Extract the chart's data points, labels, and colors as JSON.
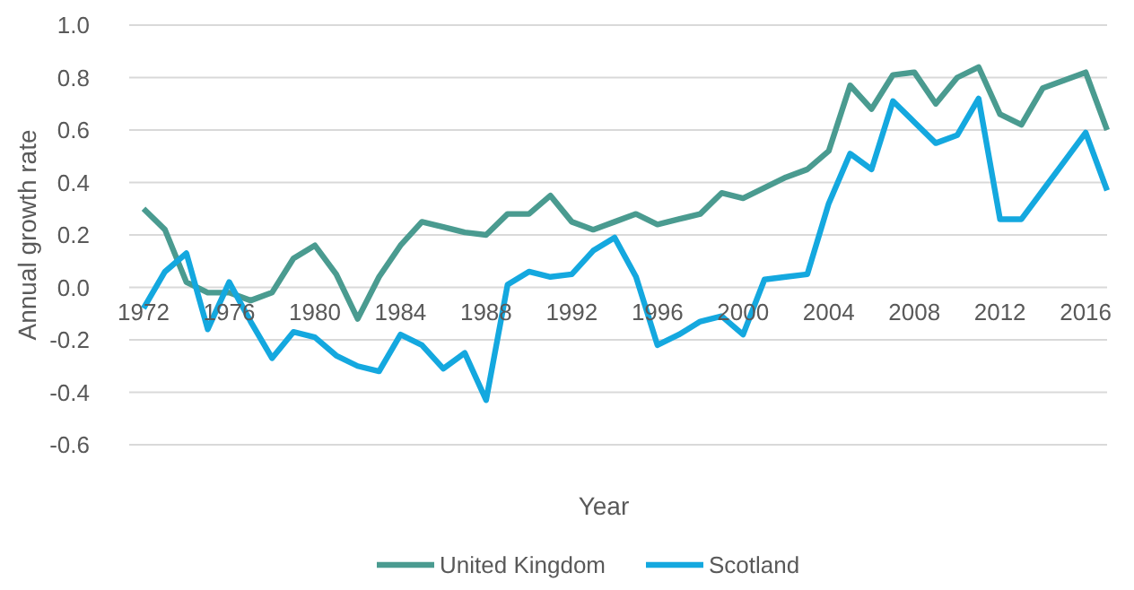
{
  "chart_data": {
    "type": "line",
    "xlabel": "Year",
    "ylabel": "Annual growth rate",
    "x": [
      1972,
      1973,
      1974,
      1975,
      1976,
      1977,
      1978,
      1979,
      1980,
      1981,
      1982,
      1983,
      1984,
      1985,
      1986,
      1987,
      1988,
      1989,
      1990,
      1991,
      1992,
      1993,
      1994,
      1995,
      1996,
      1997,
      1998,
      1999,
      2000,
      2001,
      2002,
      2003,
      2004,
      2005,
      2006,
      2007,
      2008,
      2009,
      2010,
      2011,
      2012,
      2013,
      2014,
      2015,
      2016,
      2017
    ],
    "series": [
      {
        "name": "United Kingdom",
        "color": "#4a9b90",
        "values": [
          0.3,
          0.22,
          0.02,
          -0.02,
          -0.02,
          -0.05,
          -0.02,
          0.11,
          0.16,
          0.05,
          -0.12,
          0.04,
          0.16,
          0.25,
          0.23,
          0.21,
          0.2,
          0.28,
          0.28,
          0.35,
          0.25,
          0.22,
          0.25,
          0.28,
          0.24,
          0.26,
          0.28,
          0.36,
          0.34,
          0.38,
          0.42,
          0.45,
          0.52,
          0.77,
          0.68,
          0.81,
          0.82,
          0.7,
          0.8,
          0.84,
          0.66,
          0.62,
          0.76,
          0.79,
          0.82,
          0.6
        ]
      },
      {
        "name": "Scotland",
        "color": "#14a8df",
        "values": [
          -0.08,
          0.06,
          0.13,
          -0.16,
          0.02,
          -0.13,
          -0.27,
          -0.17,
          -0.19,
          -0.26,
          -0.3,
          -0.32,
          -0.18,
          -0.22,
          -0.31,
          -0.25,
          -0.43,
          0.01,
          0.06,
          0.04,
          0.05,
          0.14,
          0.19,
          0.04,
          -0.22,
          -0.18,
          -0.13,
          -0.11,
          -0.18,
          0.03,
          0.04,
          0.05,
          0.32,
          0.51,
          0.45,
          0.71,
          0.63,
          0.55,
          0.58,
          0.72,
          0.26,
          0.26,
          0.37,
          0.48,
          0.59,
          0.37
        ]
      }
    ],
    "xlim": [
      1972,
      2017
    ],
    "xticks": [
      1972,
      1976,
      1980,
      1984,
      1988,
      1992,
      1996,
      2000,
      2004,
      2008,
      2012,
      2016
    ],
    "ylim": [
      -0.6,
      1.0
    ],
    "yticks": [
      {
        "value": 1.0,
        "label": "1.0"
      },
      0.8,
      0.6,
      0.4,
      0.2,
      {
        "value": 0,
        "label": "0.0"
      },
      -0.2,
      -0.4,
      -0.6
    ],
    "grid": "y",
    "legend": "bottom",
    "line_style": "solid",
    "marker": "none"
  }
}
